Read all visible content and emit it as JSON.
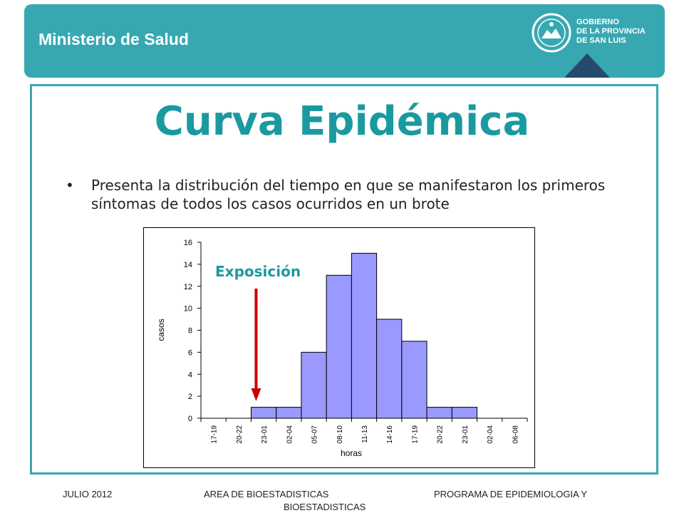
{
  "header": {
    "ministry": "Ministerio de Salud",
    "gov_lines": [
      "GOBIERNO",
      "DE LA PROVINCIA",
      "DE SAN LUIS"
    ]
  },
  "title": "Curva Epidémica",
  "bullet": "Presenta la distribución del tiempo en que se manifestaron los primeros síntomas de todos los casos ocurridos en un brote",
  "chart_data": {
    "type": "bar",
    "xlabel": "horas",
    "ylabel": "casos",
    "ylim": [
      0,
      16
    ],
    "yticks": [
      0,
      2,
      4,
      6,
      8,
      10,
      12,
      14,
      16
    ],
    "categories": [
      "17-19",
      "20-22",
      "23-01",
      "02-04",
      "05-07",
      "08-10",
      "11-13",
      "14-16",
      "17-19",
      "20-22",
      "23-01",
      "02-04",
      "06-08"
    ],
    "values": [
      0,
      0,
      1,
      1,
      6,
      13,
      15,
      9,
      7,
      1,
      1,
      0,
      0
    ],
    "annotation": {
      "text": "Exposición",
      "category_index": 2
    },
    "bar_color": "#9999ff",
    "arrow_color": "#cc0000"
  },
  "footer": {
    "date": "JULIO 2012",
    "area": "AREA DE BIOESTADISTICAS",
    "area_cont": "BIOESTADISTICAS",
    "program": "PROGRAMA  DE EPIDEMIOLOGIA Y"
  }
}
